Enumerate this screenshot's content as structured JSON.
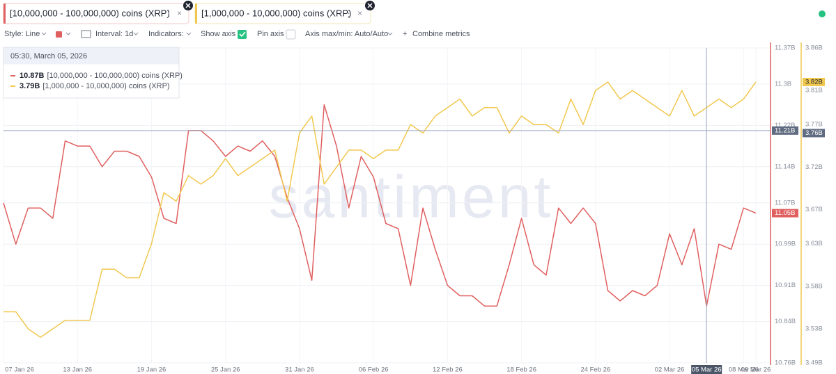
{
  "toolbar": {
    "style": "Style: Line",
    "interval": "Interval: 1d",
    "indicators": "Indicators:",
    "show_axis": "Show axis",
    "pin_axis": "Pin axis",
    "axis_minmax": "Axis max/min: Auto/Auto",
    "combine": "Combine metrics"
  },
  "chart_data": {
    "type": "line",
    "watermark": "santiment",
    "categories": [
      "07 Jan 26",
      null,
      null,
      null,
      null,
      null,
      "13 Jan 26",
      null,
      null,
      null,
      null,
      null,
      "19 Jan 26",
      null,
      null,
      null,
      null,
      null,
      "25 Jan 26",
      null,
      null,
      null,
      null,
      null,
      "31 Jan 26",
      null,
      null,
      null,
      null,
      null,
      "06 Feb 26",
      null,
      null,
      null,
      null,
      null,
      "12 Feb 26",
      null,
      null,
      null,
      null,
      null,
      "18 Feb 26",
      null,
      null,
      null,
      null,
      null,
      "24 Feb 26",
      null,
      null,
      null,
      null,
      null,
      "02 Mar 26",
      null,
      null,
      "05 Mar 26",
      null,
      null,
      "08 Mar 26",
      "09 Mar 26"
    ],
    "series": [
      {
        "name": "[10,000,000 - 100,000,000) coins (XRP)",
        "color": "#e05f5f",
        "axis": "y",
        "last_label": "11.05B",
        "values": [
          11.07,
          10.99,
          11.06,
          11.06,
          11.04,
          11.19,
          11.18,
          11.18,
          11.14,
          11.17,
          11.17,
          11.16,
          11.12,
          11.04,
          11.03,
          11.21,
          11.21,
          11.19,
          11.16,
          11.18,
          11.17,
          11.19,
          11.16,
          11.08,
          11.02,
          10.92,
          11.26,
          11.18,
          11.06,
          11.16,
          11.12,
          11.03,
          11.02,
          10.91,
          11.06,
          10.98,
          10.91,
          10.89,
          10.89,
          10.87,
          10.87,
          10.95,
          11.04,
          10.95,
          10.93,
          11.06,
          11.03,
          11.06,
          11.03,
          10.9,
          10.88,
          10.9,
          10.89,
          10.91,
          11.01,
          10.95,
          11.02,
          10.87,
          10.99,
          10.98,
          11.06,
          11.05
        ]
      },
      {
        "name": "[1,000,000 - 10,000,000) coins (XRP)",
        "color": "#f1c84f",
        "axis": "y2",
        "last_label": "3.82B",
        "values": [
          3.55,
          3.55,
          3.53,
          3.52,
          3.53,
          3.54,
          3.54,
          3.54,
          3.6,
          3.6,
          3.59,
          3.59,
          3.63,
          3.69,
          3.68,
          3.71,
          3.7,
          3.71,
          3.73,
          3.71,
          3.72,
          3.73,
          3.74,
          3.68,
          3.76,
          3.78,
          3.7,
          3.72,
          3.74,
          3.74,
          3.73,
          3.74,
          3.74,
          3.77,
          3.76,
          3.78,
          3.79,
          3.8,
          3.78,
          3.79,
          3.79,
          3.76,
          3.78,
          3.77,
          3.77,
          3.76,
          3.8,
          3.77,
          3.81,
          3.82,
          3.8,
          3.81,
          3.8,
          3.79,
          3.78,
          3.81,
          3.78,
          3.79,
          3.8,
          3.79,
          3.8,
          3.82
        ]
      }
    ],
    "ylim": [
      10.76,
      11.37
    ],
    "yticks": [
      {
        "value": 10.76,
        "label": "10.76B"
      },
      {
        "value": 10.84,
        "label": "10.84B"
      },
      {
        "value": 10.91,
        "label": "10.91B"
      },
      {
        "value": 10.99,
        "label": "10.99B"
      },
      {
        "value": 11.07,
        "label": "11.07B"
      },
      {
        "value": 11.14,
        "label": "11.14B"
      },
      {
        "value": 11.22,
        "label": "11.22B"
      },
      {
        "value": 11.3,
        "label": "11.3B"
      },
      {
        "value": 11.37,
        "label": "11.37B"
      }
    ],
    "y2lim": [
      3.49,
      3.86
    ],
    "y2ticks": [
      {
        "value": 3.49,
        "label": "3.49B"
      },
      {
        "value": 3.53,
        "label": "3.53B"
      },
      {
        "value": 3.58,
        "label": "3.58B"
      },
      {
        "value": 3.63,
        "label": "3.63B"
      },
      {
        "value": 3.67,
        "label": "3.67B"
      },
      {
        "value": 3.72,
        "label": "3.72B"
      },
      {
        "value": 3.77,
        "label": "3.77B"
      },
      {
        "value": 3.81,
        "label": "3.81B"
      },
      {
        "value": 3.86,
        "label": "3.86B"
      }
    ],
    "grid": true,
    "crosshair": {
      "index": 57,
      "y": 11.21,
      "y_label": "11.21B",
      "y2": 3.76,
      "y2_label": "3.76B"
    },
    "tooltip": {
      "date": "05:30, March 05, 2026",
      "value_labels": [
        "10.87B",
        "3.79B"
      ]
    }
  }
}
